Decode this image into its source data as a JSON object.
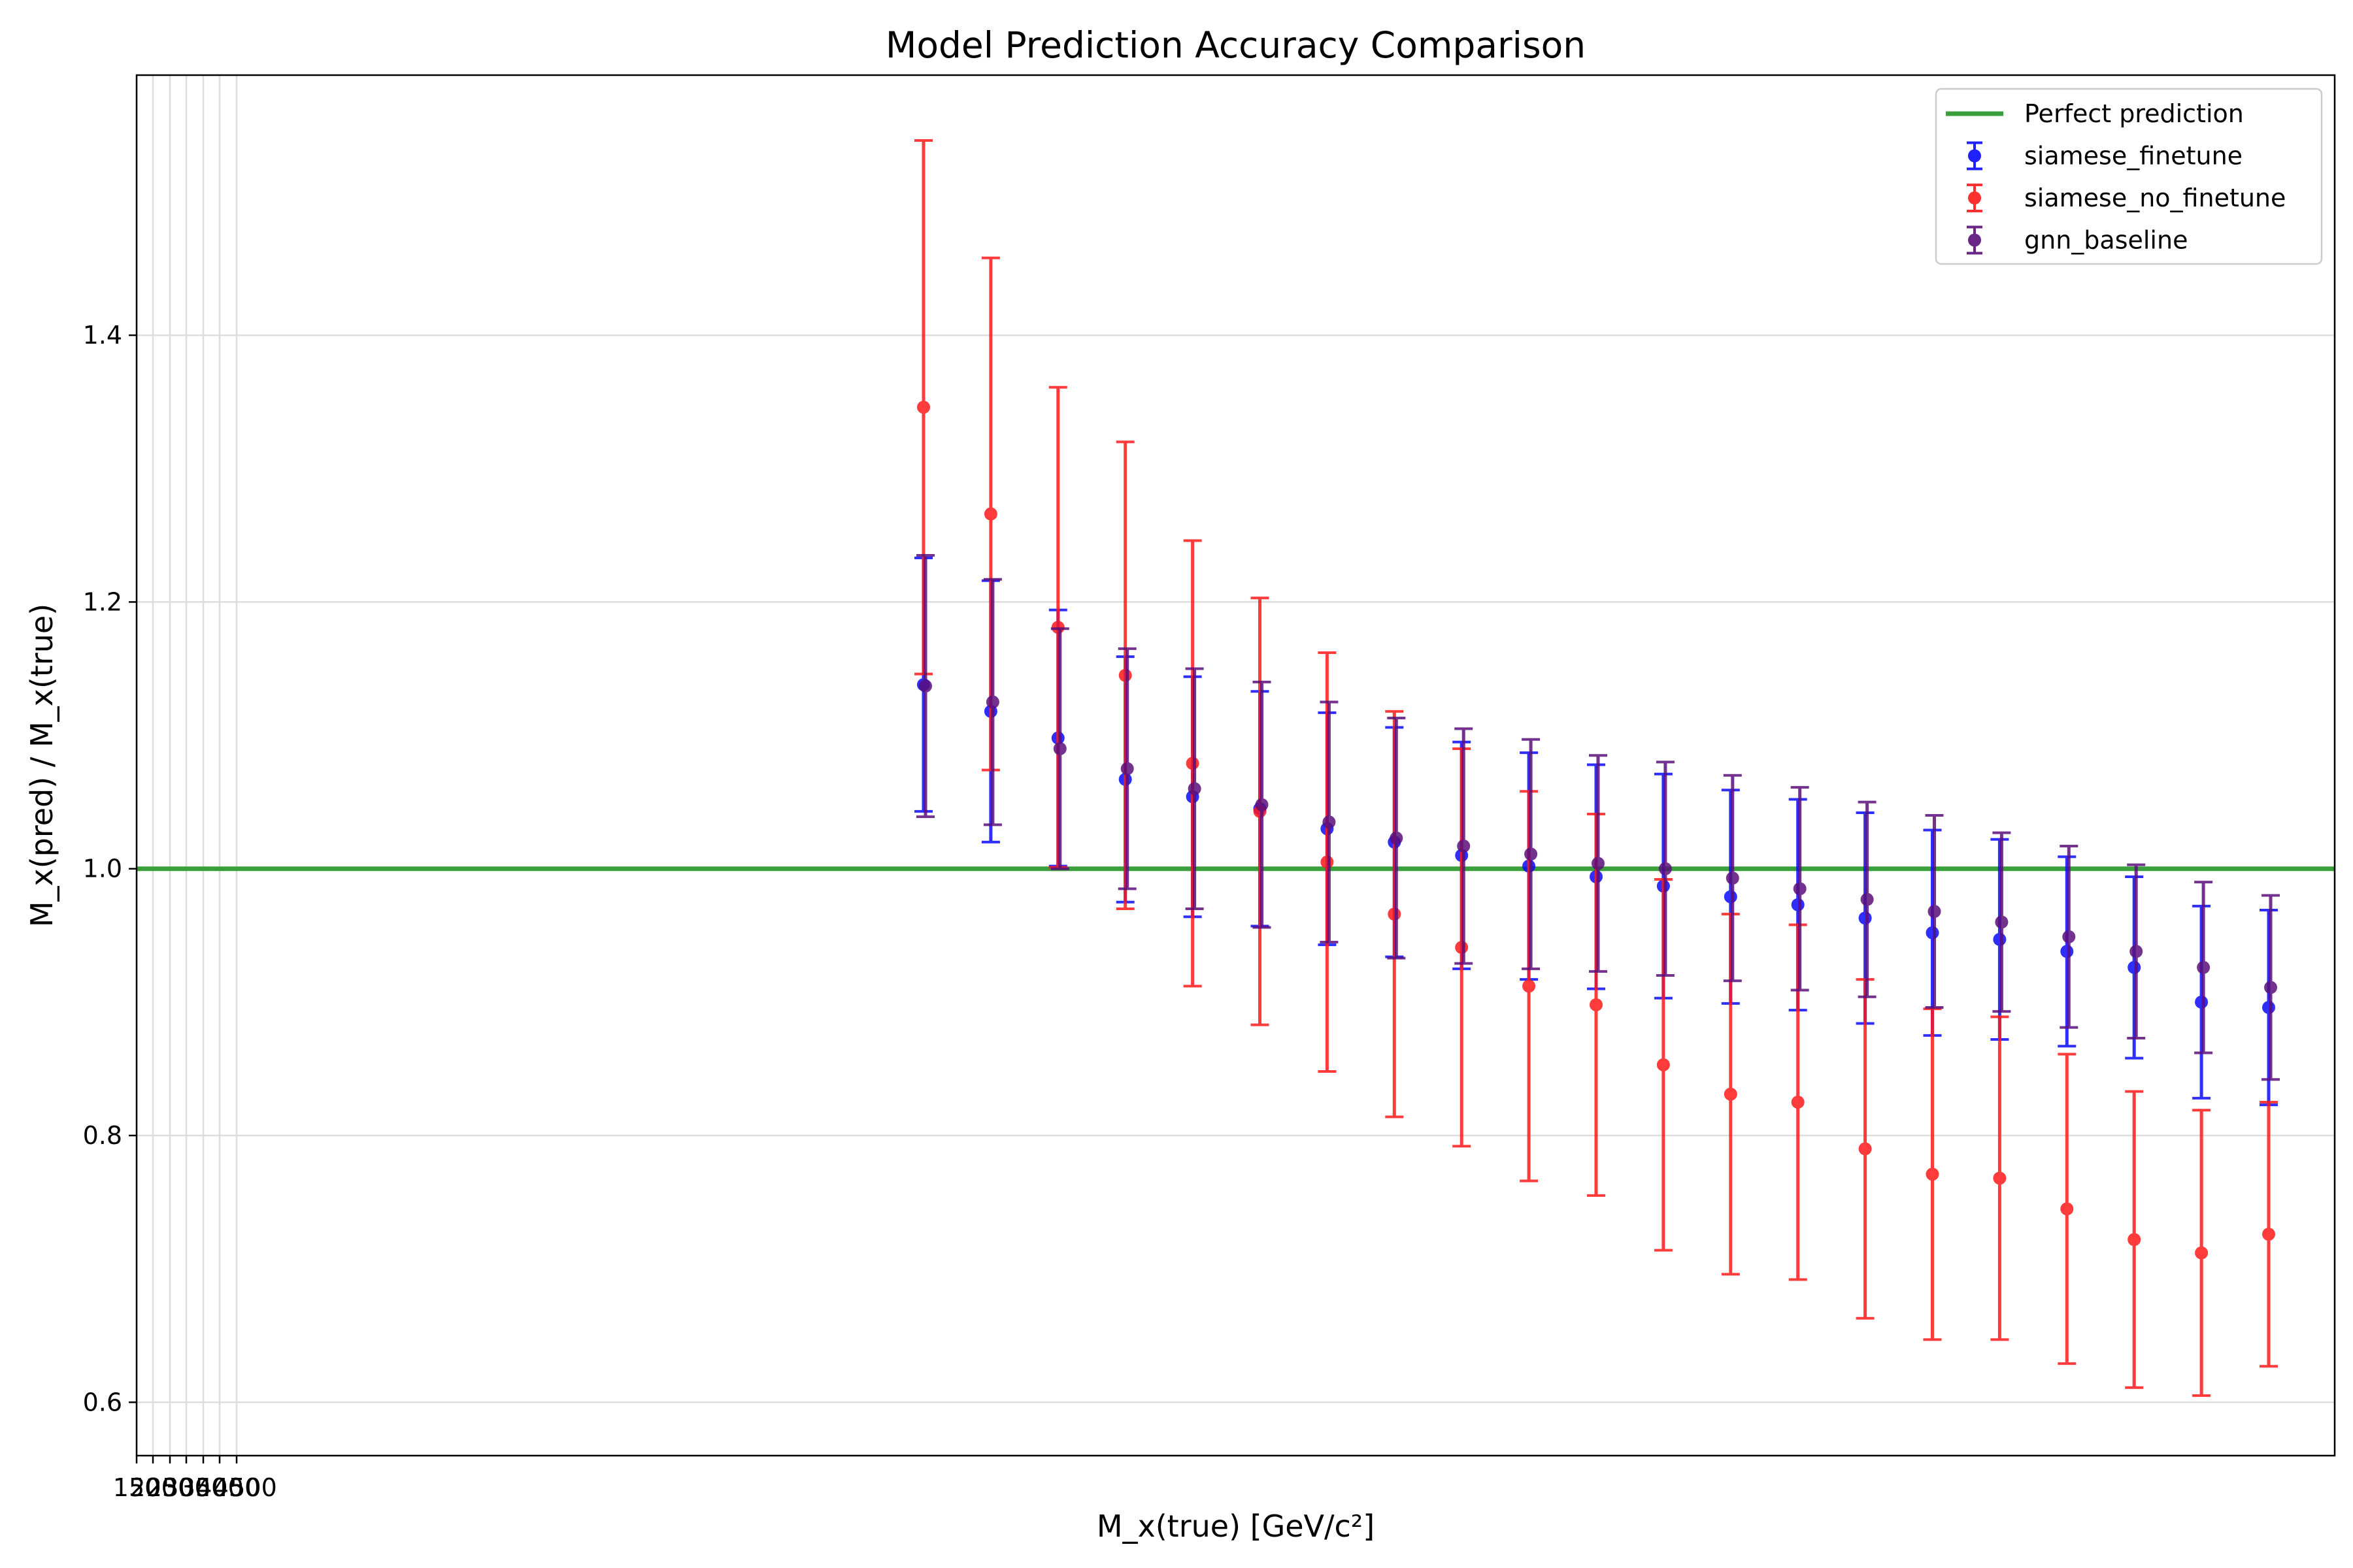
{
  "chart_data": {
    "type": "scatter",
    "title": "Model Prediction Accuracy Comparison",
    "xlabel": "M_x(true) [GeV/c²]",
    "ylabel": "M_x(pred) / M_x(true)",
    "ylim": [
      0.56,
      1.595
    ],
    "yticks": [
      0.6,
      0.8,
      1.0,
      1.2,
      1.4
    ],
    "ytick_labels": [
      "0.6",
      "0.8",
      "1.0",
      "1.2",
      "1.4"
    ],
    "xtick_labels": [
      "150",
      "200",
      "250",
      "300",
      "350",
      "400",
      "450",
      "500"
    ],
    "grid": true,
    "legend_position": "top-right",
    "reference_line": {
      "name": "Perfect prediction",
      "y": 1.0,
      "color": "#3a9e3a"
    },
    "series": [
      {
        "name": "siamese_finetune",
        "color": "#0a0aff",
        "y": [
          1.138,
          1.118,
          1.098,
          1.067,
          1.054,
          1.045,
          1.03,
          1.02,
          1.01,
          1.002,
          0.994,
          0.987,
          0.979,
          0.973,
          0.963,
          0.952,
          0.947,
          0.938,
          0.926,
          0.9,
          0.896
        ],
        "yerr": [
          0.095,
          0.098,
          0.096,
          0.092,
          0.09,
          0.088,
          0.087,
          0.086,
          0.085,
          0.085,
          0.084,
          0.084,
          0.08,
          0.079,
          0.079,
          0.077,
          0.075,
          0.071,
          0.068,
          0.072,
          0.073
        ]
      },
      {
        "name": "siamese_no_finetune",
        "color": "#ff1a1a",
        "y": [
          1.346,
          1.266,
          1.181,
          1.145,
          1.079,
          1.043,
          1.005,
          0.966,
          0.941,
          0.912,
          0.898,
          0.853,
          0.831,
          0.825,
          0.79,
          0.771,
          0.768,
          0.745,
          0.722,
          0.712,
          0.726
        ],
        "yerr": [
          0.2,
          0.192,
          0.18,
          0.175,
          0.167,
          0.16,
          0.157,
          0.152,
          0.149,
          0.146,
          0.143,
          0.139,
          0.135,
          0.133,
          0.127,
          0.124,
          0.121,
          0.116,
          0.111,
          0.107,
          0.099
        ]
      },
      {
        "name": "gnn_baseline",
        "color": "#5a0f7a",
        "y": [
          1.137,
          1.125,
          1.09,
          1.075,
          1.06,
          1.048,
          1.035,
          1.023,
          1.017,
          1.011,
          1.004,
          1.0,
          0.993,
          0.985,
          0.977,
          0.968,
          0.96,
          0.949,
          0.938,
          0.926,
          0.911
        ],
        "yerr": [
          0.098,
          0.092,
          0.09,
          0.09,
          0.09,
          0.092,
          0.09,
          0.09,
          0.088,
          0.086,
          0.081,
          0.08,
          0.077,
          0.076,
          0.073,
          0.072,
          0.067,
          0.068,
          0.065,
          0.064,
          0.069
        ]
      }
    ]
  }
}
